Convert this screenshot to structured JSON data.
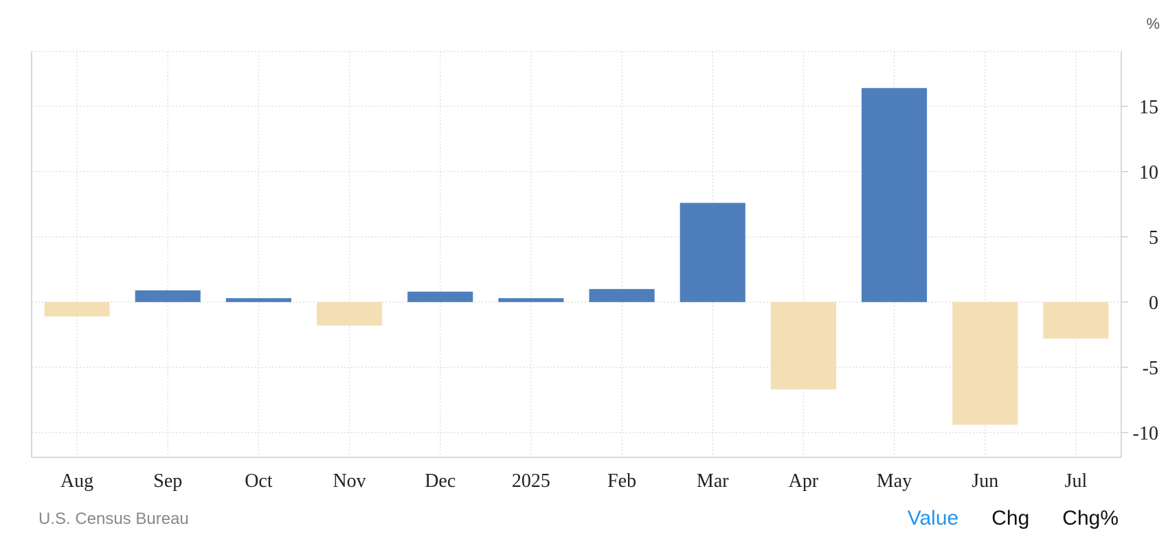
{
  "chart_data": {
    "type": "bar",
    "categories": [
      "Aug",
      "Sep",
      "Oct",
      "Nov",
      "Dec",
      "2025",
      "Feb",
      "Mar",
      "Apr",
      "May",
      "Jun",
      "Jul"
    ],
    "values": [
      -1.1,
      0.9,
      0.3,
      -1.8,
      0.8,
      0.3,
      1.0,
      7.6,
      -6.7,
      16.4,
      -9.4,
      -2.8
    ],
    "unit": "%",
    "yticks": [
      15,
      10,
      5,
      0,
      -5,
      -10
    ],
    "ylim": [
      -11.9,
      19.2
    ],
    "grid": true,
    "positive_color": "#4e7fbc",
    "negative_color": "#f4dfb5"
  },
  "footer": {
    "source": "U.S. Census Bureau",
    "views": [
      {
        "label": "Value",
        "active": true
      },
      {
        "label": "Chg",
        "active": false
      },
      {
        "label": "Chg%",
        "active": false
      }
    ]
  }
}
